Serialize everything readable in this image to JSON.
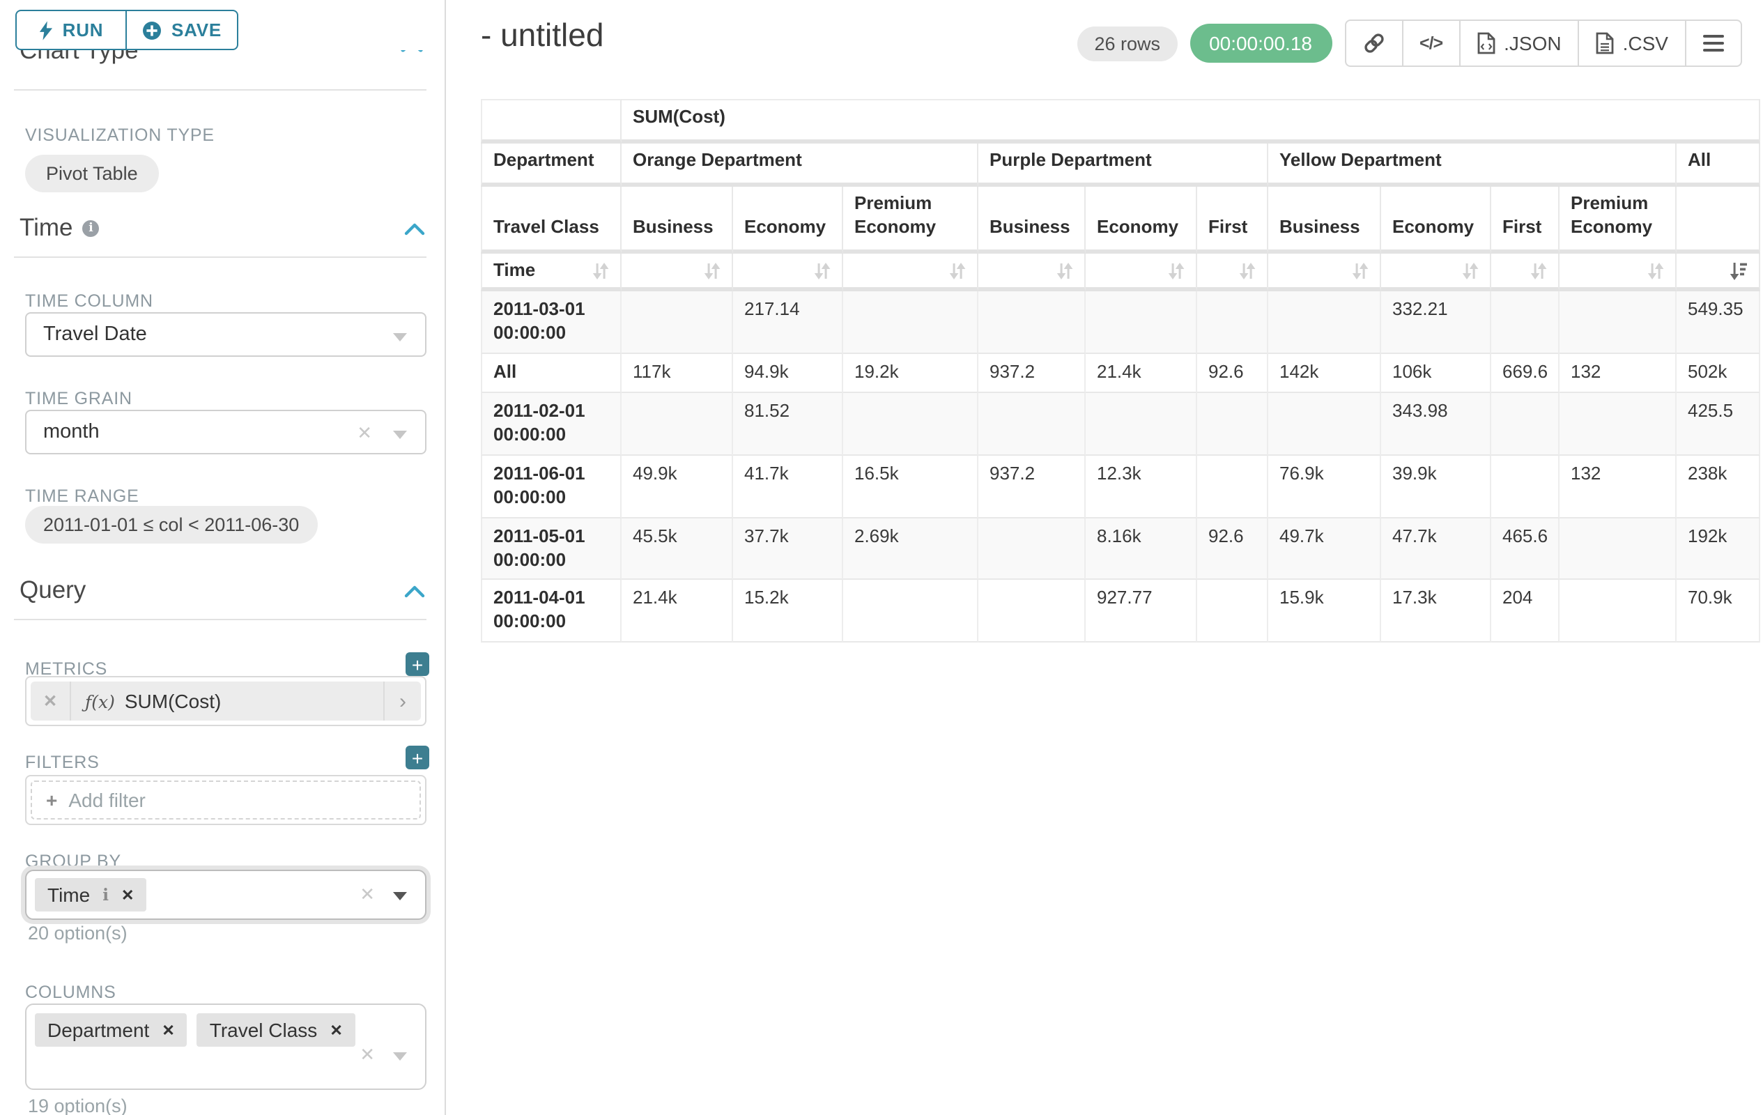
{
  "colors": {
    "accent_teal": "#2b7f9b",
    "plus_button_teal": "#3d7e90",
    "chevron_blue": "#3ba6c9",
    "timer_green": "#6cbd8d",
    "badge_gray": "#e9e9e9",
    "chip_gray": "#e3e3e3",
    "border_gray": "#d9d9d9"
  },
  "icons": {
    "bolt": "⚡",
    "plus_circle": "⊕",
    "plus": "+",
    "close": "✕",
    "caret_down": "▼",
    "chevron_up": "⌃",
    "info": "i",
    "fx": "ƒ(x)",
    "arrow_right": "›",
    "sort": "⇅",
    "link": "🔗",
    "code": "</>",
    "hamburger": "☰"
  },
  "sidebar": {
    "run_label": "RUN",
    "save_label": "SAVE",
    "chart_type_header": "Chart Type",
    "viz_label": "VISUALIZATION TYPE",
    "viz_value": "Pivot Table",
    "time_header": "Time",
    "time_column_label": "TIME COLUMN",
    "time_column_value": "Travel Date",
    "time_grain_label": "TIME GRAIN",
    "time_grain_value": "month",
    "time_range_label": "TIME RANGE",
    "time_range_value": "2011-01-01 ≤ col < 2011-06-30",
    "query_header": "Query",
    "metrics_label": "METRICS",
    "metric_fx": "ƒ(x)",
    "metric_value": "SUM(Cost)",
    "filters_label": "FILTERS",
    "add_filter_label": "Add filter",
    "group_by_label": "GROUP BY",
    "group_by_chips": [
      "Time"
    ],
    "group_by_count": "20 option(s)",
    "columns_label": "COLUMNS",
    "columns_chips": [
      "Department",
      "Travel Class"
    ],
    "columns_count": "19 option(s)"
  },
  "header": {
    "title": "- untitled",
    "rows_badge": "26 rows",
    "timer": "00:00:00.18",
    "code_label": "</>",
    "json_label": ".JSON",
    "csv_label": ".CSV"
  },
  "chart_data": {
    "type": "table",
    "title": "SUM(Cost) pivot table",
    "metric": "SUM(Cost)",
    "row_dimension": "Time",
    "column_dimensions": [
      "Department",
      "Travel Class"
    ],
    "column_groups": [
      {
        "name": "Orange Department",
        "columns": [
          "Business",
          "Economy",
          "Premium Economy"
        ]
      },
      {
        "name": "Purple Department",
        "columns": [
          "Business",
          "Economy",
          "First"
        ]
      },
      {
        "name": "Yellow Department",
        "columns": [
          "Business",
          "Economy",
          "First",
          "Premium Economy"
        ]
      },
      {
        "name": "All",
        "columns": [
          ""
        ]
      }
    ],
    "rows": [
      {
        "time": "2011-03-01 00:00:00",
        "values": [
          "",
          "217.14",
          "",
          "",
          "",
          "",
          "",
          "332.21",
          "",
          "",
          "549.35"
        ]
      },
      {
        "time": "All",
        "values": [
          "117k",
          "94.9k",
          "19.2k",
          "937.2",
          "21.4k",
          "92.6",
          "142k",
          "106k",
          "669.6",
          "132",
          "502k"
        ]
      },
      {
        "time": "2011-02-01 00:00:00",
        "values": [
          "",
          "81.52",
          "",
          "",
          "",
          "",
          "",
          "343.98",
          "",
          "",
          "425.5"
        ]
      },
      {
        "time": "2011-06-01 00:00:00",
        "values": [
          "49.9k",
          "41.7k",
          "16.5k",
          "937.2",
          "12.3k",
          "",
          "76.9k",
          "39.9k",
          "",
          "132",
          "238k"
        ]
      },
      {
        "time": "2011-05-01 00:00:00",
        "values": [
          "45.5k",
          "37.7k",
          "2.69k",
          "",
          "8.16k",
          "92.6",
          "49.7k",
          "47.7k",
          "465.6",
          "",
          "192k"
        ]
      },
      {
        "time": "2011-04-01 00:00:00",
        "values": [
          "21.4k",
          "15.2k",
          "",
          "",
          "927.77",
          "",
          "15.9k",
          "17.3k",
          "204",
          "",
          "70.9k"
        ]
      }
    ]
  }
}
